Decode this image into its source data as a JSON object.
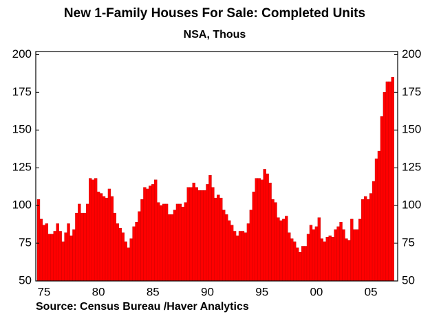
{
  "chart_data": {
    "type": "bar",
    "title": "New 1-Family Houses For Sale: Completed Units",
    "subtitle": "NSA, Thous",
    "source": "Source:  Census Bureau /Haver Analytics",
    "color": "#ff0000",
    "categories": [
      null,
      null,
      "75",
      null,
      null,
      null,
      null,
      null,
      null,
      null,
      null,
      null,
      null,
      null,
      null,
      null,
      null,
      null,
      null,
      null,
      null,
      null,
      "80",
      null,
      null,
      null,
      null,
      null,
      null,
      null,
      null,
      null,
      null,
      null,
      null,
      null,
      null,
      null,
      null,
      null,
      null,
      null,
      "85",
      null,
      null,
      null,
      null,
      null,
      null,
      null,
      null,
      null,
      null,
      null,
      null,
      null,
      null,
      null,
      null,
      null,
      null,
      null,
      "90",
      null,
      null,
      null,
      null,
      null,
      null,
      null,
      null,
      null,
      null,
      null,
      null,
      null,
      null,
      null,
      null,
      null,
      null,
      null,
      "95",
      null,
      null,
      null,
      null,
      null,
      null,
      null,
      null,
      null,
      null,
      null,
      null,
      null,
      null,
      null,
      null,
      null,
      null,
      null,
      "00",
      null,
      null,
      null,
      null,
      null,
      null,
      null,
      null,
      null,
      null,
      null,
      null,
      null,
      null,
      null,
      null,
      null,
      null,
      null,
      "05",
      null,
      null,
      null,
      null,
      null,
      null,
      null,
      null
    ],
    "values": [
      104,
      91,
      87,
      88,
      81,
      81,
      83,
      88,
      83,
      76,
      82,
      88,
      80,
      84,
      95,
      101,
      95,
      95,
      101,
      118,
      117,
      118,
      109,
      108,
      106,
      105,
      111,
      106,
      95,
      88,
      85,
      82,
      76,
      72,
      78,
      86,
      89,
      96,
      104,
      112,
      111,
      113,
      114,
      117,
      102,
      100,
      101,
      101,
      94,
      94,
      97,
      101,
      101,
      99,
      102,
      112,
      112,
      115,
      112,
      110,
      110,
      110,
      114,
      120,
      112,
      105,
      107,
      105,
      97,
      94,
      90,
      87,
      83,
      80,
      83,
      83,
      82,
      88,
      97,
      109,
      118,
      118,
      117,
      124,
      121,
      115,
      104,
      102,
      92,
      90,
      91,
      93,
      82,
      78,
      76,
      72,
      69,
      73,
      73,
      81,
      87,
      84,
      86,
      92,
      78,
      76,
      79,
      80,
      79,
      84,
      86,
      89,
      84,
      78,
      77,
      91,
      84,
      84,
      91,
      104,
      106,
      104,
      108,
      116,
      131,
      136,
      159,
      175,
      182,
      182,
      185
    ],
    "ylim": [
      50,
      202
    ],
    "yticks": [
      50,
      75,
      100,
      125,
      150,
      175,
      200
    ]
  }
}
